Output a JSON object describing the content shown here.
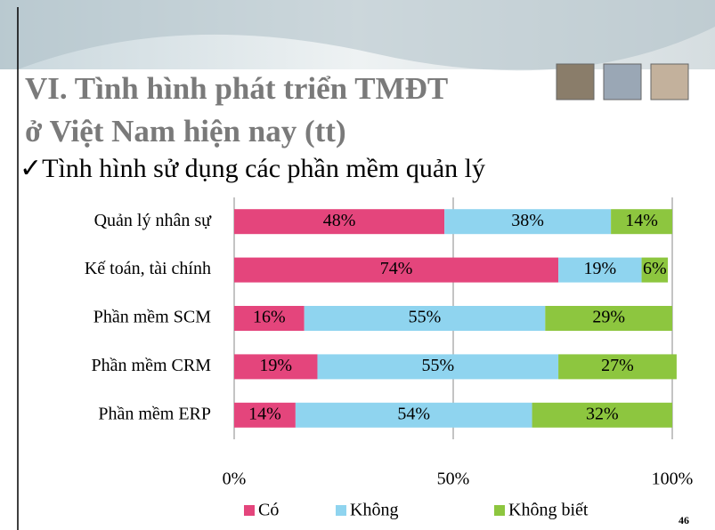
{
  "header": {
    "title_lines": [
      "VI. Tình hình phát triển TMĐT",
      "ở Việt Nam hiện nay (tt)"
    ],
    "subtitle": "✓Tình hình sử dụng các phần mềm quản lý",
    "page_number": "46"
  },
  "chart_data": {
    "type": "bar",
    "orientation": "horizontal",
    "stacked": true,
    "categories": [
      "Quản lý nhân sự",
      "Kế toán, tài chính",
      "Phần mềm SCM",
      "Phần mềm CRM",
      "Phần mềm ERP"
    ],
    "series": [
      {
        "name": "Có",
        "color": "#e4457c",
        "values": [
          48,
          74,
          16,
          19,
          14
        ],
        "value_labels": [
          "48%",
          "74%",
          "16%",
          "19%",
          "14%"
        ]
      },
      {
        "name": "Không",
        "color": "#8fd4ef",
        "values": [
          38,
          19,
          55,
          55,
          54
        ],
        "value_labels": [
          "38%",
          "19%",
          "55%",
          "55%",
          "54%"
        ]
      },
      {
        "name": "Không biết",
        "color": "#8dc63f",
        "values": [
          14,
          6,
          29,
          27,
          32
        ],
        "value_labels": [
          "14%",
          "6%",
          "29%",
          "27%",
          "32%"
        ]
      }
    ],
    "xlim": [
      0,
      100
    ],
    "xticks": [
      {
        "value": 0,
        "label": "0%"
      },
      {
        "value": 50,
        "label": "50%"
      },
      {
        "value": 100,
        "label": "100%"
      }
    ],
    "grid": true,
    "legend": "bottom"
  }
}
